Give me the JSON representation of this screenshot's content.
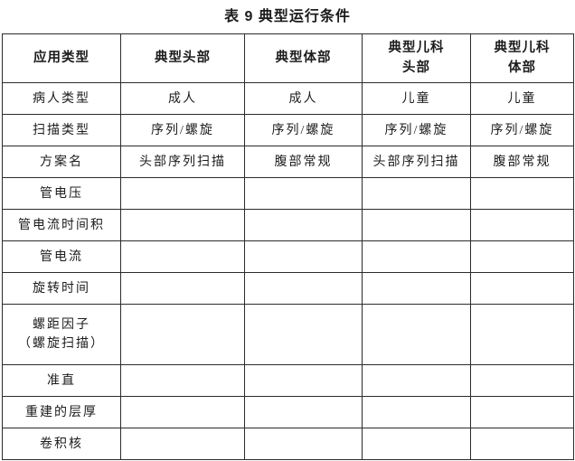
{
  "title": "表 9  典型运行条件",
  "table": {
    "headers": [
      "应用类型",
      "典型头部",
      "典型体部",
      "典型儿科\n头部",
      "典型儿科\n体部"
    ],
    "rows": [
      {
        "label": "病人类型",
        "values": [
          "成人",
          "成人",
          "儿童",
          "儿童"
        ]
      },
      {
        "label": "扫描类型",
        "values": [
          "序列/螺旋",
          "序列/螺旋",
          "序列/螺旋",
          "序列/螺旋"
        ]
      },
      {
        "label": "方案名",
        "values": [
          "头部序列扫描",
          "腹部常规",
          "头部序列扫描",
          "腹部常规"
        ]
      },
      {
        "label": "管电压",
        "values": [
          "",
          "",
          "",
          ""
        ]
      },
      {
        "label": "管电流时间积",
        "values": [
          "",
          "",
          "",
          ""
        ]
      },
      {
        "label": "管电流",
        "values": [
          "",
          "",
          "",
          ""
        ]
      },
      {
        "label": "旋转时间",
        "values": [
          "",
          "",
          "",
          ""
        ]
      },
      {
        "label": "螺距因子\n（螺旋扫描）",
        "values": [
          "",
          "",
          "",
          ""
        ]
      },
      {
        "label": "准直",
        "values": [
          "",
          "",
          "",
          ""
        ]
      },
      {
        "label": "重建的层厚",
        "values": [
          "",
          "",
          "",
          ""
        ]
      },
      {
        "label": "卷积核",
        "values": [
          "",
          "",
          "",
          ""
        ]
      }
    ]
  }
}
